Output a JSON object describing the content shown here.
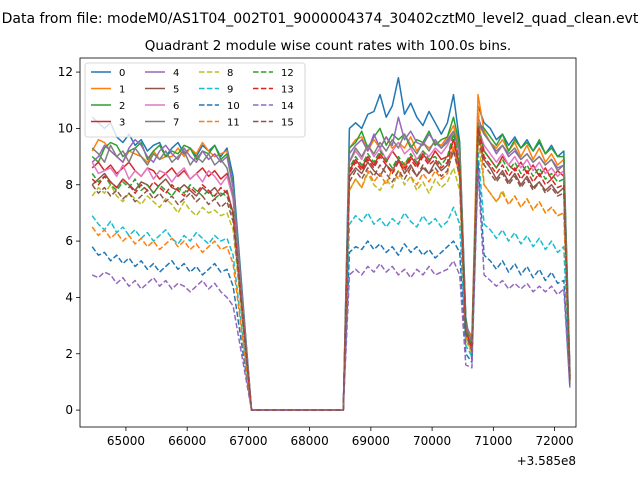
{
  "suptitle": "Data from file: modeM0/AS1T04_002T01_9000004374_30402cztM0_level2_quad_clean.evt",
  "chart_data": {
    "type": "line",
    "title": "Quadrant 2 module wise count rates with 100.0s bins.",
    "xlabel": "",
    "ylabel": "",
    "x_offset_label": "+3.585e8",
    "xlim": [
      64250,
      72350
    ],
    "ylim": [
      -0.6,
      12.5
    ],
    "xticks": [
      65000,
      66000,
      67000,
      68000,
      69000,
      70000,
      71000,
      72000
    ],
    "xtick_labels": [
      "65000",
      "66000",
      "67000",
      "68000",
      "69000",
      "70000",
      "71000",
      "72000"
    ],
    "yticks": [
      0,
      2,
      4,
      6,
      8,
      10,
      12
    ],
    "ytick_labels": [
      "0",
      "2",
      "4",
      "6",
      "8",
      "10",
      "12"
    ],
    "grid": false,
    "legend": {
      "placement": "top-left",
      "columns": 4
    },
    "x_start": 64450,
    "bin": 100,
    "gap": {
      "zero_start": 67050,
      "zero_end": 68550
    },
    "series": [
      {
        "name": "0",
        "color": "#1f77b4",
        "dashed": false,
        "pre": [
          10.4,
          10.2,
          10.0,
          10.2,
          9.7,
          9.5,
          9.8,
          9.4,
          9.6,
          9.2,
          9.4,
          9.5,
          9.0,
          9.3,
          9.5,
          9.1,
          9.3,
          9.0,
          9.4,
          9.2,
          9.4,
          9.0,
          9.3,
          8.3
        ],
        "post": [
          10.0,
          10.2,
          10.0,
          10.5,
          10.6,
          11.2,
          10.4,
          10.8,
          11.8,
          10.5,
          10.9,
          10.4,
          10.1,
          10.6,
          10.2,
          9.8,
          10.2,
          11.2,
          9.5,
          3.3,
          1.8,
          10.8,
          10.2,
          10.0,
          9.6,
          9.8,
          9.4,
          9.7,
          9.3,
          9.6,
          9.2,
          9.5,
          9.1,
          9.4,
          9.0,
          9.2,
          1.4
        ]
      },
      {
        "name": "1",
        "color": "#ff7f0e",
        "dashed": false,
        "pre": [
          9.2,
          9.6,
          9.5,
          9.2,
          9.0,
          8.8,
          9.2,
          9.1,
          9.0,
          8.8,
          9.2,
          8.9,
          9.0,
          9.0,
          9.3,
          9.0,
          9.3,
          9.1,
          9.5,
          9.2,
          9.0,
          9.1,
          9.2,
          7.9
        ],
        "post": [
          9.3,
          9.6,
          9.7,
          9.2,
          9.6,
          9.3,
          9.7,
          9.3,
          9.5,
          9.3,
          9.7,
          9.2,
          9.5,
          9.3,
          9.5,
          9.4,
          9.7,
          10.1,
          9.3,
          3.0,
          2.6,
          11.2,
          9.9,
          9.5,
          9.3,
          9.6,
          9.2,
          9.5,
          9.0,
          9.4,
          8.9,
          9.3,
          8.8,
          9.1,
          8.7,
          8.9,
          1.2
        ]
      },
      {
        "name": "2",
        "color": "#2ca02c",
        "dashed": false,
        "pre": [
          9.0,
          8.8,
          9.3,
          9.5,
          9.4,
          9.0,
          9.2,
          9.3,
          9.5,
          8.9,
          9.2,
          9.4,
          9.0,
          9.2,
          9.1,
          9.4,
          9.3,
          8.9,
          9.2,
          9.1,
          9.4,
          8.9,
          9.1,
          8.0
        ],
        "post": [
          9.3,
          9.5,
          9.9,
          9.3,
          9.7,
          10.0,
          9.4,
          9.8,
          9.6,
          9.8,
          9.3,
          9.6,
          9.5,
          9.9,
          9.4,
          9.6,
          9.7,
          10.4,
          9.4,
          3.2,
          2.2,
          10.2,
          10.0,
          9.7,
          9.4,
          9.8,
          9.2,
          9.6,
          9.3,
          9.5,
          9.2,
          9.6,
          9.1,
          9.3,
          9.0,
          9.0,
          1.3
        ]
      },
      {
        "name": "3",
        "color": "#d62728",
        "dashed": false,
        "pre": [
          8.6,
          8.8,
          8.5,
          8.7,
          8.4,
          8.6,
          8.8,
          8.5,
          8.3,
          8.6,
          8.5,
          8.2,
          8.4,
          8.6,
          8.3,
          8.5,
          8.2,
          8.4,
          8.6,
          8.3,
          8.5,
          8.2,
          8.4,
          7.6
        ],
        "post": [
          8.5,
          8.9,
          8.6,
          9.0,
          8.7,
          9.1,
          8.8,
          9.2,
          8.9,
          8.6,
          9.0,
          8.7,
          9.1,
          8.8,
          9.2,
          8.9,
          9.0,
          9.6,
          8.7,
          2.8,
          2.2,
          10.2,
          9.2,
          8.9,
          8.6,
          9.0,
          8.7,
          8.5,
          8.8,
          8.4,
          8.7,
          8.3,
          8.6,
          8.2,
          8.5,
          8.3,
          1.2
        ]
      },
      {
        "name": "4",
        "color": "#9467bd",
        "dashed": false,
        "pre": [
          8.8,
          9.0,
          9.4,
          9.2,
          9.0,
          8.8,
          9.3,
          9.6,
          9.4,
          9.0,
          8.8,
          9.2,
          9.4,
          9.1,
          8.9,
          9.3,
          9.0,
          8.8,
          9.2,
          8.9,
          9.1,
          8.8,
          9.0,
          7.9
        ],
        "post": [
          9.1,
          9.4,
          9.6,
          9.2,
          9.8,
          9.3,
          9.7,
          9.4,
          10.4,
          9.6,
          9.9,
          9.5,
          9.4,
          9.8,
          9.5,
          9.3,
          9.6,
          9.9,
          9.2,
          3.1,
          2.4,
          10.4,
          9.8,
          9.5,
          9.1,
          9.4,
          9.0,
          9.2,
          8.9,
          9.1,
          8.8,
          9.0,
          8.7,
          8.9,
          8.6,
          8.7,
          1.2
        ]
      },
      {
        "name": "5",
        "color": "#8c564b",
        "dashed": false,
        "pre": [
          8.0,
          8.2,
          8.4,
          8.1,
          7.9,
          8.2,
          8.0,
          7.8,
          8.1,
          8.0,
          7.7,
          8.0,
          8.2,
          7.9,
          7.8,
          8.0,
          7.8,
          7.6,
          7.9,
          7.7,
          7.9,
          7.6,
          7.8,
          7.0
        ],
        "post": [
          8.3,
          8.6,
          8.4,
          8.8,
          8.5,
          8.3,
          8.7,
          8.5,
          8.9,
          8.4,
          8.7,
          8.3,
          8.6,
          8.4,
          8.8,
          8.5,
          8.7,
          9.3,
          8.5,
          2.8,
          2.3,
          9.8,
          8.9,
          8.6,
          8.2,
          8.5,
          8.1,
          8.4,
          8.0,
          8.3,
          7.9,
          8.1,
          7.8,
          8.0,
          7.7,
          7.9,
          1.1
        ]
      },
      {
        "name": "6",
        "color": "#e377c2",
        "dashed": false,
        "pre": [
          8.8,
          8.4,
          8.5,
          8.6,
          8.3,
          8.7,
          8.2,
          8.5,
          8.3,
          8.6,
          8.2,
          8.5,
          8.4,
          8.1,
          8.4,
          8.6,
          8.2,
          8.4,
          8.1,
          8.5,
          8.3,
          8.0,
          8.3,
          7.5
        ],
        "post": [
          8.8,
          9.2,
          8.9,
          9.4,
          9.0,
          9.3,
          8.9,
          9.2,
          9.5,
          9.1,
          9.3,
          8.9,
          9.2,
          9.0,
          9.3,
          9.1,
          9.4,
          9.8,
          9.0,
          2.9,
          2.4,
          10.0,
          9.4,
          9.1,
          8.8,
          9.1,
          8.7,
          9.0,
          8.6,
          8.9,
          8.5,
          8.8,
          8.4,
          8.6,
          8.3,
          8.5,
          1.1
        ]
      },
      {
        "name": "7",
        "color": "#7f7f7f",
        "dashed": false,
        "pre": [
          9.3,
          9.1,
          8.8,
          9.4,
          9.0,
          9.2,
          8.8,
          9.3,
          9.0,
          8.7,
          9.1,
          8.9,
          9.2,
          8.8,
          9.0,
          9.2,
          8.7,
          9.0,
          8.8,
          9.1,
          8.7,
          8.9,
          8.6,
          7.6
        ],
        "post": [
          8.8,
          9.3,
          9.0,
          9.4,
          9.1,
          9.5,
          9.2,
          9.6,
          9.3,
          9.8,
          9.4,
          9.1,
          9.5,
          9.2,
          9.6,
          9.3,
          9.5,
          9.9,
          9.2,
          3.0,
          2.4,
          10.2,
          9.8,
          9.5,
          9.2,
          9.4,
          9.1,
          9.3,
          8.9,
          9.1,
          8.8,
          9.0,
          8.7,
          8.9,
          8.5,
          8.7,
          1.2
        ]
      },
      {
        "name": "8",
        "color": "#bcbd22",
        "dashed": true,
        "pre": [
          7.6,
          7.9,
          7.7,
          8.0,
          7.6,
          7.4,
          7.7,
          7.5,
          7.3,
          7.6,
          7.4,
          7.2,
          7.5,
          7.3,
          7.0,
          7.4,
          7.1,
          6.9,
          7.2,
          7.0,
          7.1,
          6.9,
          7.0,
          6.4
        ],
        "post": [
          7.8,
          8.2,
          7.9,
          8.4,
          8.0,
          7.8,
          8.2,
          7.9,
          8.5,
          8.0,
          8.3,
          7.8,
          8.1,
          7.7,
          8.2,
          7.9,
          8.1,
          8.6,
          7.8,
          2.5,
          2.0,
          9.6,
          8.0,
          7.7,
          7.4,
          7.8,
          7.3,
          7.6,
          7.2,
          7.5,
          7.1,
          7.4,
          7.0,
          7.2,
          6.9,
          7.0,
          1.0
        ]
      },
      {
        "name": "9",
        "color": "#17becf",
        "dashed": true,
        "pre": [
          6.9,
          6.6,
          6.4,
          6.7,
          6.3,
          6.5,
          6.2,
          6.4,
          6.1,
          6.3,
          6.0,
          6.2,
          6.4,
          6.1,
          5.9,
          6.2,
          6.0,
          6.3,
          6.1,
          5.9,
          6.2,
          6.0,
          6.1,
          5.5
        ],
        "post": [
          6.6,
          6.9,
          6.7,
          7.0,
          6.6,
          6.8,
          6.5,
          6.8,
          6.6,
          7.0,
          6.7,
          6.5,
          6.9,
          6.6,
          6.8,
          6.5,
          6.7,
          7.2,
          6.6,
          2.3,
          1.9,
          9.2,
          6.6,
          6.4,
          6.1,
          6.4,
          6.0,
          6.3,
          5.9,
          6.2,
          5.8,
          6.1,
          5.7,
          6.0,
          5.6,
          5.8,
          0.9
        ]
      },
      {
        "name": "10",
        "color": "#1f77b4",
        "dashed": true,
        "pre": [
          5.8,
          5.5,
          5.6,
          5.3,
          5.5,
          5.2,
          5.4,
          5.1,
          5.3,
          5.0,
          5.2,
          4.9,
          5.1,
          5.3,
          5.0,
          5.2,
          4.9,
          5.1,
          4.8,
          5.0,
          5.2,
          4.9,
          5.0,
          4.4
        ],
        "post": [
          5.6,
          5.8,
          5.7,
          6.0,
          5.7,
          5.9,
          5.6,
          5.8,
          5.5,
          5.9,
          5.6,
          5.8,
          5.5,
          5.7,
          5.4,
          5.6,
          5.8,
          6.0,
          5.6,
          2.0,
          1.7,
          8.8,
          5.5,
          5.3,
          5.0,
          5.3,
          4.9,
          5.2,
          4.8,
          5.1,
          4.7,
          5.0,
          4.6,
          4.9,
          4.5,
          4.6,
          0.8
        ]
      },
      {
        "name": "11",
        "color": "#ff7f0e",
        "dashed": true,
        "pre": [
          6.5,
          6.2,
          6.4,
          6.1,
          6.3,
          6.0,
          6.2,
          5.9,
          6.1,
          5.8,
          6.0,
          5.7,
          5.9,
          6.1,
          5.8,
          6.0,
          5.7,
          5.9,
          5.6,
          5.8,
          6.0,
          5.7,
          5.8,
          5.2
        ],
        "post": [
          7.8,
          8.2,
          7.9,
          8.5,
          8.1,
          8.4,
          8.0,
          8.6,
          8.2,
          8.8,
          8.3,
          8.0,
          8.4,
          8.1,
          8.5,
          8.2,
          8.4,
          9.4,
          8.2,
          2.6,
          2.1,
          10.8,
          8.0,
          7.7,
          7.4,
          7.7,
          7.3,
          7.6,
          7.2,
          7.5,
          7.1,
          7.4,
          7.0,
          7.2,
          6.9,
          7.0,
          1.0
        ]
      },
      {
        "name": "12",
        "color": "#2ca02c",
        "dashed": true,
        "pre": [
          8.4,
          8.1,
          8.3,
          8.0,
          7.8,
          8.1,
          7.9,
          8.2,
          7.8,
          8.0,
          7.7,
          8.0,
          7.8,
          7.6,
          7.9,
          7.7,
          8.0,
          7.8,
          7.6,
          7.8,
          7.5,
          7.7,
          7.6,
          6.9
        ],
        "post": [
          8.6,
          9.0,
          8.7,
          9.1,
          8.8,
          9.2,
          8.9,
          8.6,
          9.0,
          8.7,
          9.1,
          8.8,
          9.2,
          8.9,
          9.0,
          8.7,
          9.0,
          9.8,
          8.8,
          2.9,
          2.3,
          10.1,
          9.2,
          8.9,
          8.6,
          8.9,
          8.5,
          8.8,
          8.4,
          8.7,
          8.3,
          8.6,
          8.2,
          8.4,
          8.1,
          8.2,
          1.1
        ]
      },
      {
        "name": "13",
        "color": "#d62728",
        "dashed": true,
        "pre": [
          8.2,
          8.0,
          8.3,
          8.1,
          7.9,
          8.2,
          8.0,
          7.7,
          8.0,
          7.8,
          8.1,
          7.9,
          7.7,
          8.0,
          7.8,
          7.6,
          7.9,
          7.7,
          8.0,
          7.8,
          7.6,
          7.9,
          7.7,
          7.0
        ],
        "post": [
          8.4,
          8.8,
          8.5,
          8.9,
          8.6,
          9.0,
          8.7,
          8.4,
          8.8,
          8.5,
          8.9,
          8.6,
          9.0,
          8.7,
          8.9,
          8.6,
          8.8,
          9.6,
          8.6,
          2.8,
          2.2,
          10.0,
          9.0,
          8.7,
          8.4,
          8.7,
          8.3,
          8.6,
          8.2,
          8.5,
          8.1,
          8.4,
          8.0,
          8.2,
          7.9,
          8.0,
          1.1
        ]
      },
      {
        "name": "14",
        "color": "#9467bd",
        "dashed": true,
        "pre": [
          4.8,
          4.7,
          4.9,
          4.8,
          4.5,
          4.7,
          4.4,
          4.6,
          4.3,
          4.5,
          4.7,
          4.4,
          4.6,
          4.3,
          4.5,
          4.4,
          4.2,
          4.4,
          4.6,
          4.3,
          4.5,
          4.2,
          4.0,
          3.7
        ],
        "post": [
          4.8,
          5.0,
          4.8,
          5.1,
          4.9,
          5.2,
          4.9,
          5.1,
          4.8,
          5.0,
          4.7,
          5.0,
          4.8,
          5.1,
          4.8,
          4.9,
          5.0,
          5.3,
          4.8,
          1.6,
          1.5,
          8.5,
          4.8,
          4.6,
          4.4,
          4.6,
          4.3,
          4.5,
          4.3,
          4.5,
          4.2,
          4.4,
          4.2,
          4.4,
          4.1,
          4.3,
          0.8
        ]
      },
      {
        "name": "15",
        "color": "#8c564b",
        "dashed": true,
        "pre": [
          8.0,
          7.7,
          7.9,
          7.6,
          7.8,
          7.5,
          7.7,
          7.4,
          7.6,
          7.8,
          7.5,
          7.7,
          7.4,
          7.6,
          7.3,
          7.5,
          7.7,
          7.4,
          7.6,
          7.3,
          7.5,
          7.2,
          7.4,
          6.7
        ],
        "post": [
          8.1,
          8.5,
          8.2,
          8.6,
          8.3,
          8.7,
          8.4,
          8.1,
          8.5,
          8.2,
          8.6,
          8.3,
          8.7,
          8.4,
          8.6,
          8.3,
          8.5,
          9.2,
          8.3,
          2.7,
          2.1,
          9.7,
          8.7,
          8.4,
          8.1,
          8.4,
          8.0,
          8.3,
          7.9,
          8.2,
          7.8,
          8.1,
          7.7,
          7.9,
          7.6,
          7.7,
          1.0
        ]
      }
    ]
  }
}
